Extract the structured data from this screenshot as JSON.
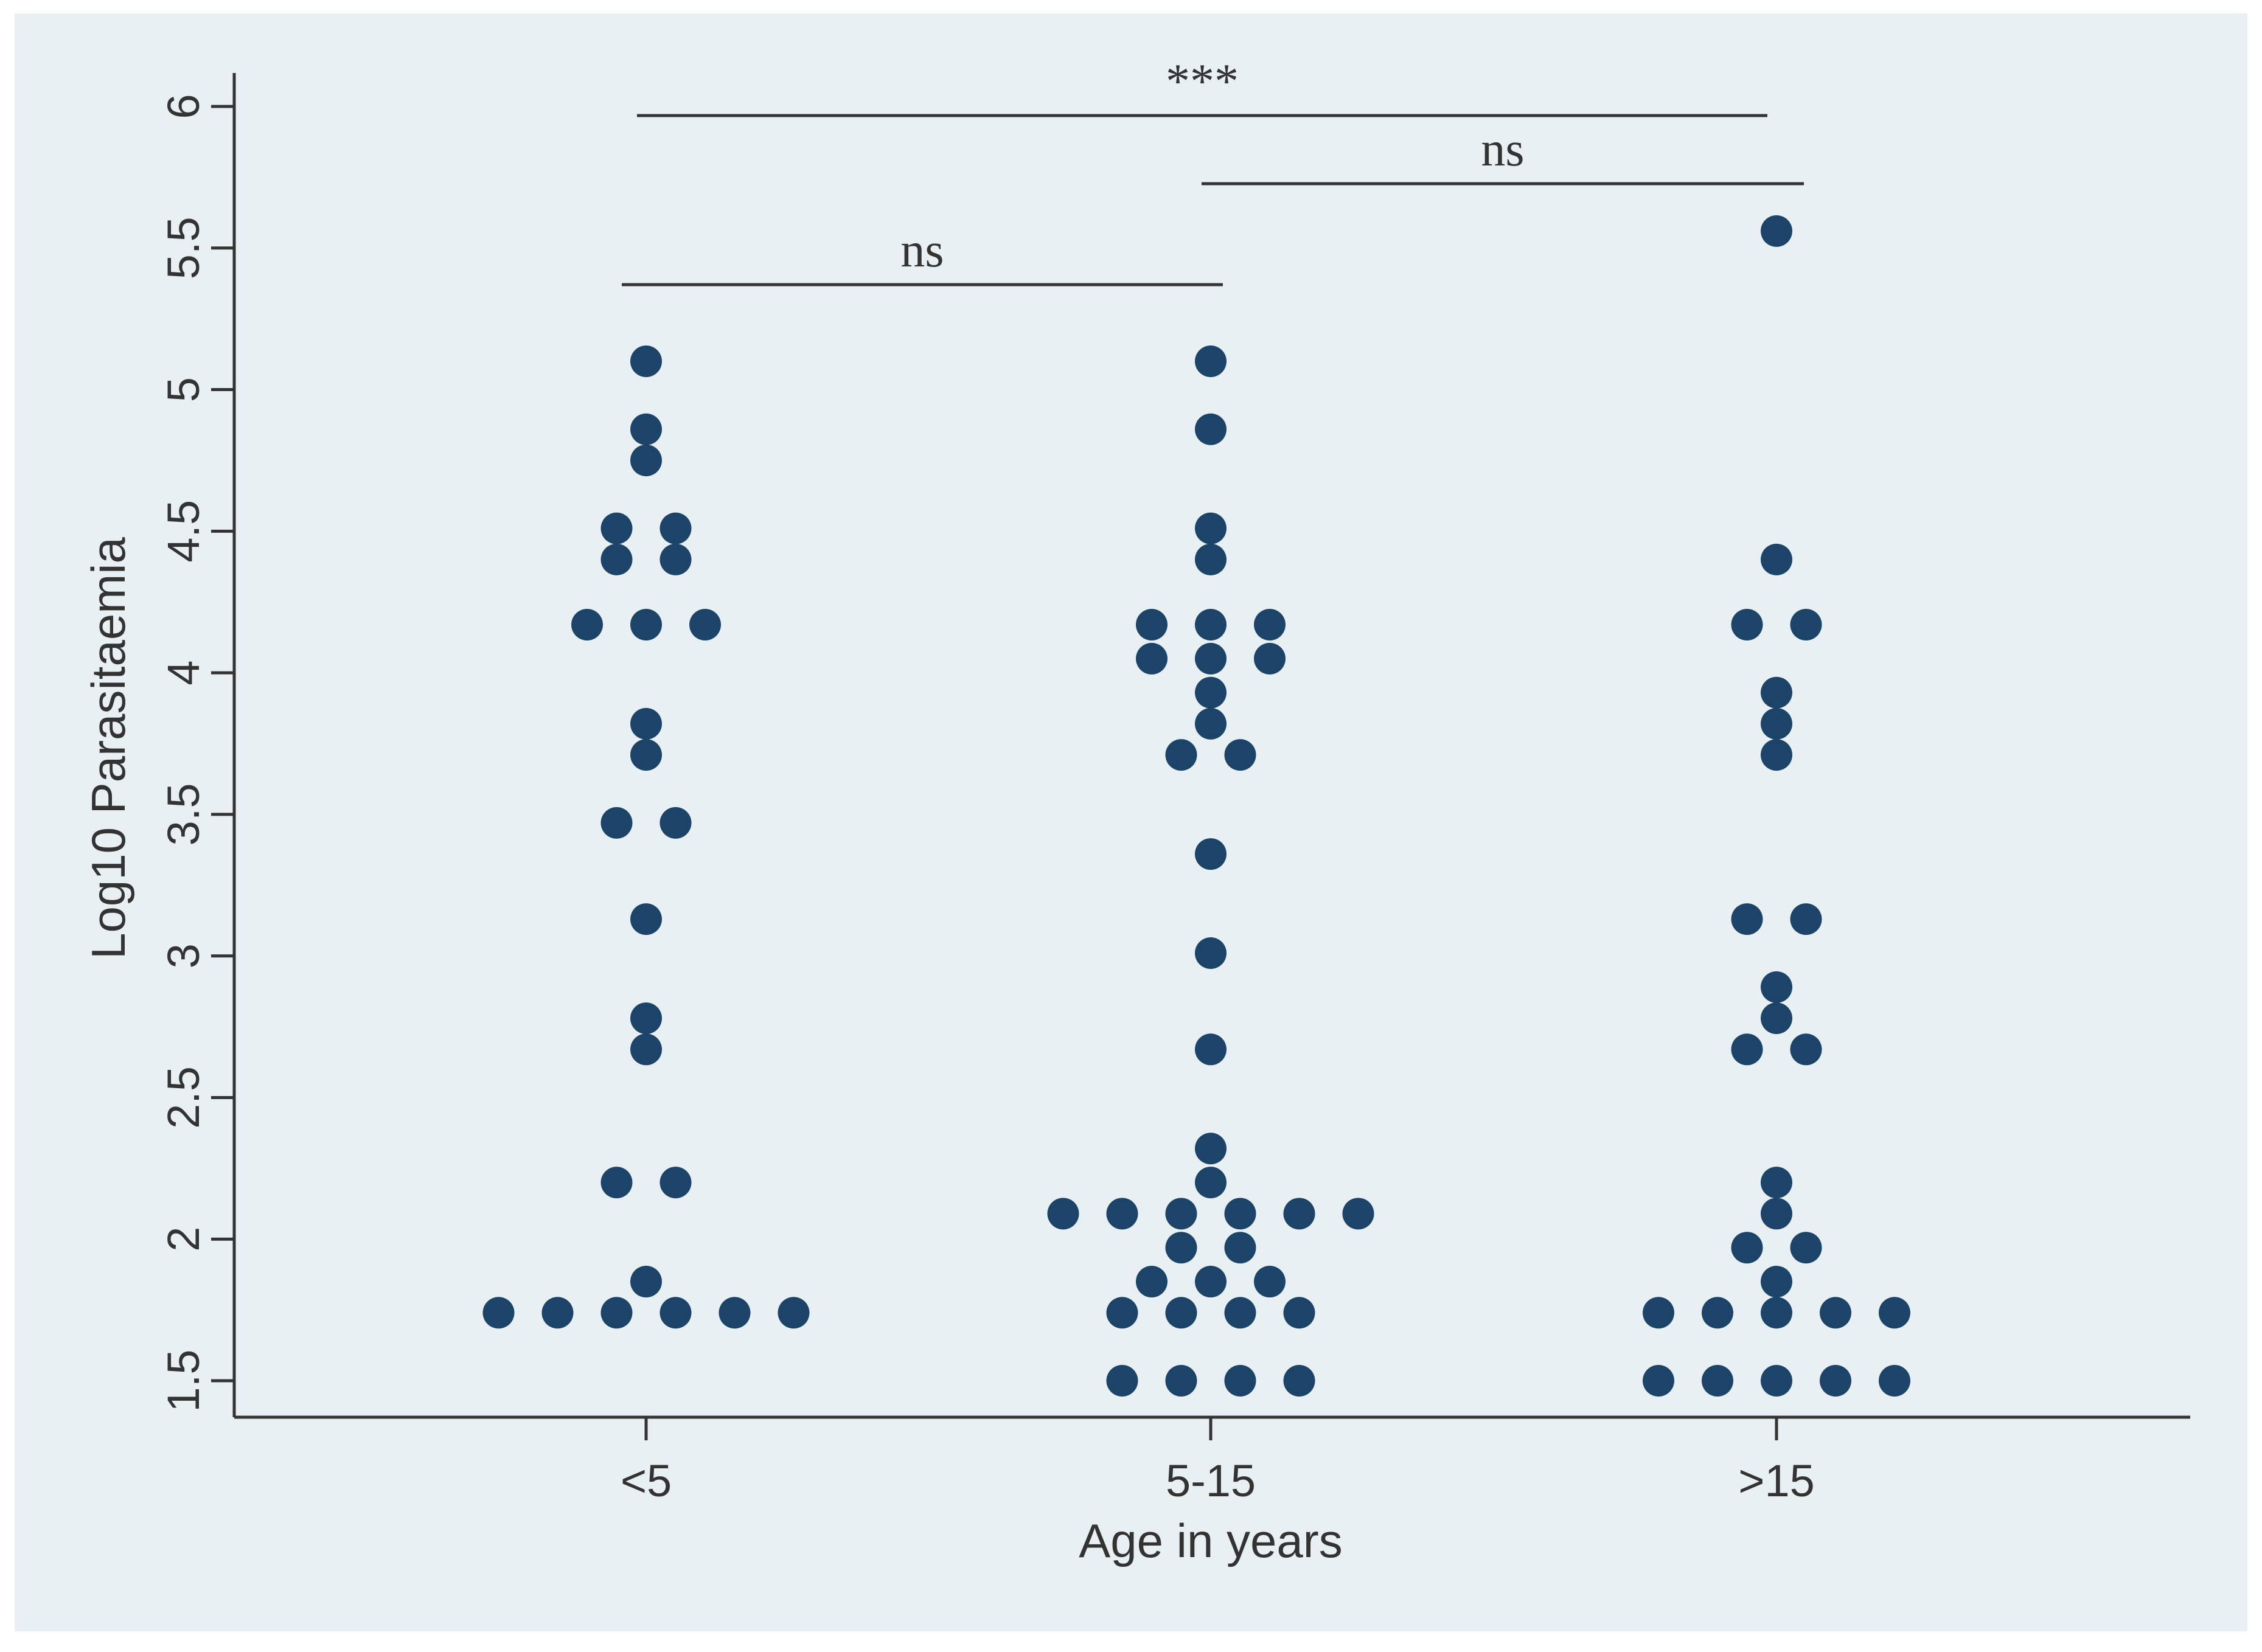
{
  "chart_data": {
    "type": "scatter",
    "style": "dot-strip plot",
    "xlabel": "Age in years",
    "ylabel": "Log10 Parasitaemia",
    "categories": [
      "<5",
      "5-15",
      ">15"
    ],
    "ylim": [
      1.5,
      6
    ],
    "yticks": [
      1.5,
      2,
      2.5,
      3,
      3.5,
      4,
      4.5,
      5,
      5.5,
      6
    ],
    "grid": false,
    "legend": "none",
    "marker_color": "#1b4468",
    "background_color": "#e9f0f3",
    "series": [
      {
        "category": "<5",
        "points": [
          {
            "y": 5.1,
            "n": 1
          },
          {
            "y": 4.86,
            "n": 1
          },
          {
            "y": 4.75,
            "n": 1
          },
          {
            "y": 4.51,
            "n": 2
          },
          {
            "y": 4.4,
            "n": 2
          },
          {
            "y": 4.17,
            "n": 3
          },
          {
            "y": 3.82,
            "n": 1
          },
          {
            "y": 3.71,
            "n": 1
          },
          {
            "y": 3.47,
            "n": 2
          },
          {
            "y": 3.13,
            "n": 1
          },
          {
            "y": 2.78,
            "n": 1
          },
          {
            "y": 2.67,
            "n": 1
          },
          {
            "y": 2.2,
            "n": 2
          },
          {
            "y": 1.85,
            "n": 1
          },
          {
            "y": 1.74,
            "n": 6
          }
        ]
      },
      {
        "category": "5-15",
        "points": [
          {
            "y": 5.1,
            "n": 1
          },
          {
            "y": 4.86,
            "n": 1
          },
          {
            "y": 4.51,
            "n": 1
          },
          {
            "y": 4.4,
            "n": 1
          },
          {
            "y": 4.17,
            "n": 3
          },
          {
            "y": 4.05,
            "n": 3
          },
          {
            "y": 3.93,
            "n": 1
          },
          {
            "y": 3.82,
            "n": 1
          },
          {
            "y": 3.71,
            "n": 2
          },
          {
            "y": 3.36,
            "n": 1
          },
          {
            "y": 3.01,
            "n": 1
          },
          {
            "y": 2.67,
            "n": 1
          },
          {
            "y": 2.32,
            "n": 1
          },
          {
            "y": 2.2,
            "n": 1
          },
          {
            "y": 2.09,
            "n": 6
          },
          {
            "y": 1.97,
            "n": 2
          },
          {
            "y": 1.85,
            "n": 3
          },
          {
            "y": 1.74,
            "n": 4
          },
          {
            "y": 1.5,
            "n": 4
          }
        ]
      },
      {
        "category": ">15",
        "points": [
          {
            "y": 5.56,
            "n": 1
          },
          {
            "y": 4.4,
            "n": 1
          },
          {
            "y": 4.17,
            "n": 2
          },
          {
            "y": 3.93,
            "n": 1
          },
          {
            "y": 3.82,
            "n": 1
          },
          {
            "y": 3.71,
            "n": 1
          },
          {
            "y": 3.13,
            "n": 2
          },
          {
            "y": 2.89,
            "n": 1
          },
          {
            "y": 2.78,
            "n": 1
          },
          {
            "y": 2.67,
            "n": 2
          },
          {
            "y": 2.2,
            "n": 1
          },
          {
            "y": 2.09,
            "n": 1
          },
          {
            "y": 1.97,
            "n": 2
          },
          {
            "y": 1.85,
            "n": 1
          },
          {
            "y": 1.74,
            "n": 5
          },
          {
            "y": 1.5,
            "n": 5
          }
        ]
      }
    ],
    "comparisons": [
      {
        "from": "<5",
        "to": ">15",
        "label": "***"
      },
      {
        "from": "5-15",
        "to": ">15",
        "label": "ns"
      },
      {
        "from": "<5",
        "to": "5-15",
        "label": "ns"
      }
    ]
  }
}
